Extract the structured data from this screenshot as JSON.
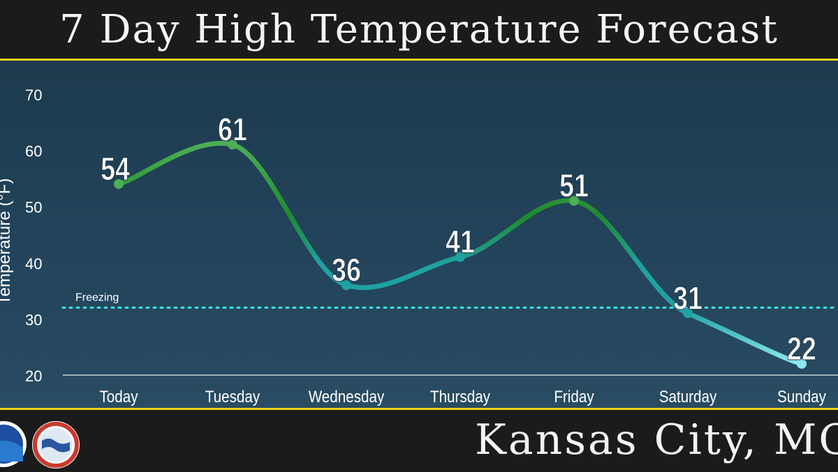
{
  "header": {
    "title": "7 Day High Temperature Forecast"
  },
  "footer": {
    "location": "Kansas City, MO"
  },
  "logos": {
    "left": "noaa-logo",
    "right": "national-weather-service-logo"
  },
  "chart_data": {
    "type": "line",
    "title": "7 Day High Temperature Forecast",
    "xlabel": "",
    "ylabel": "Temperature (°F)",
    "categories": [
      "Today",
      "Tuesday",
      "Wednesday",
      "Thursday",
      "Friday",
      "Saturday",
      "Sunday"
    ],
    "series": [
      {
        "values": [
          54,
          61,
          36,
          41,
          51,
          31,
          22
        ]
      }
    ],
    "y_ticks": [
      20,
      30,
      40,
      50,
      60,
      70
    ],
    "ylim": [
      20,
      70
    ],
    "reference_line": {
      "label": "Freezing",
      "value": 32
    },
    "grid": false,
    "colors": {
      "warm": "#4cae55",
      "mid": "#1f8a2e",
      "cool": "#1fa2a2",
      "cold": "#8ee8f2",
      "freezing": "#3fe3e3"
    }
  }
}
